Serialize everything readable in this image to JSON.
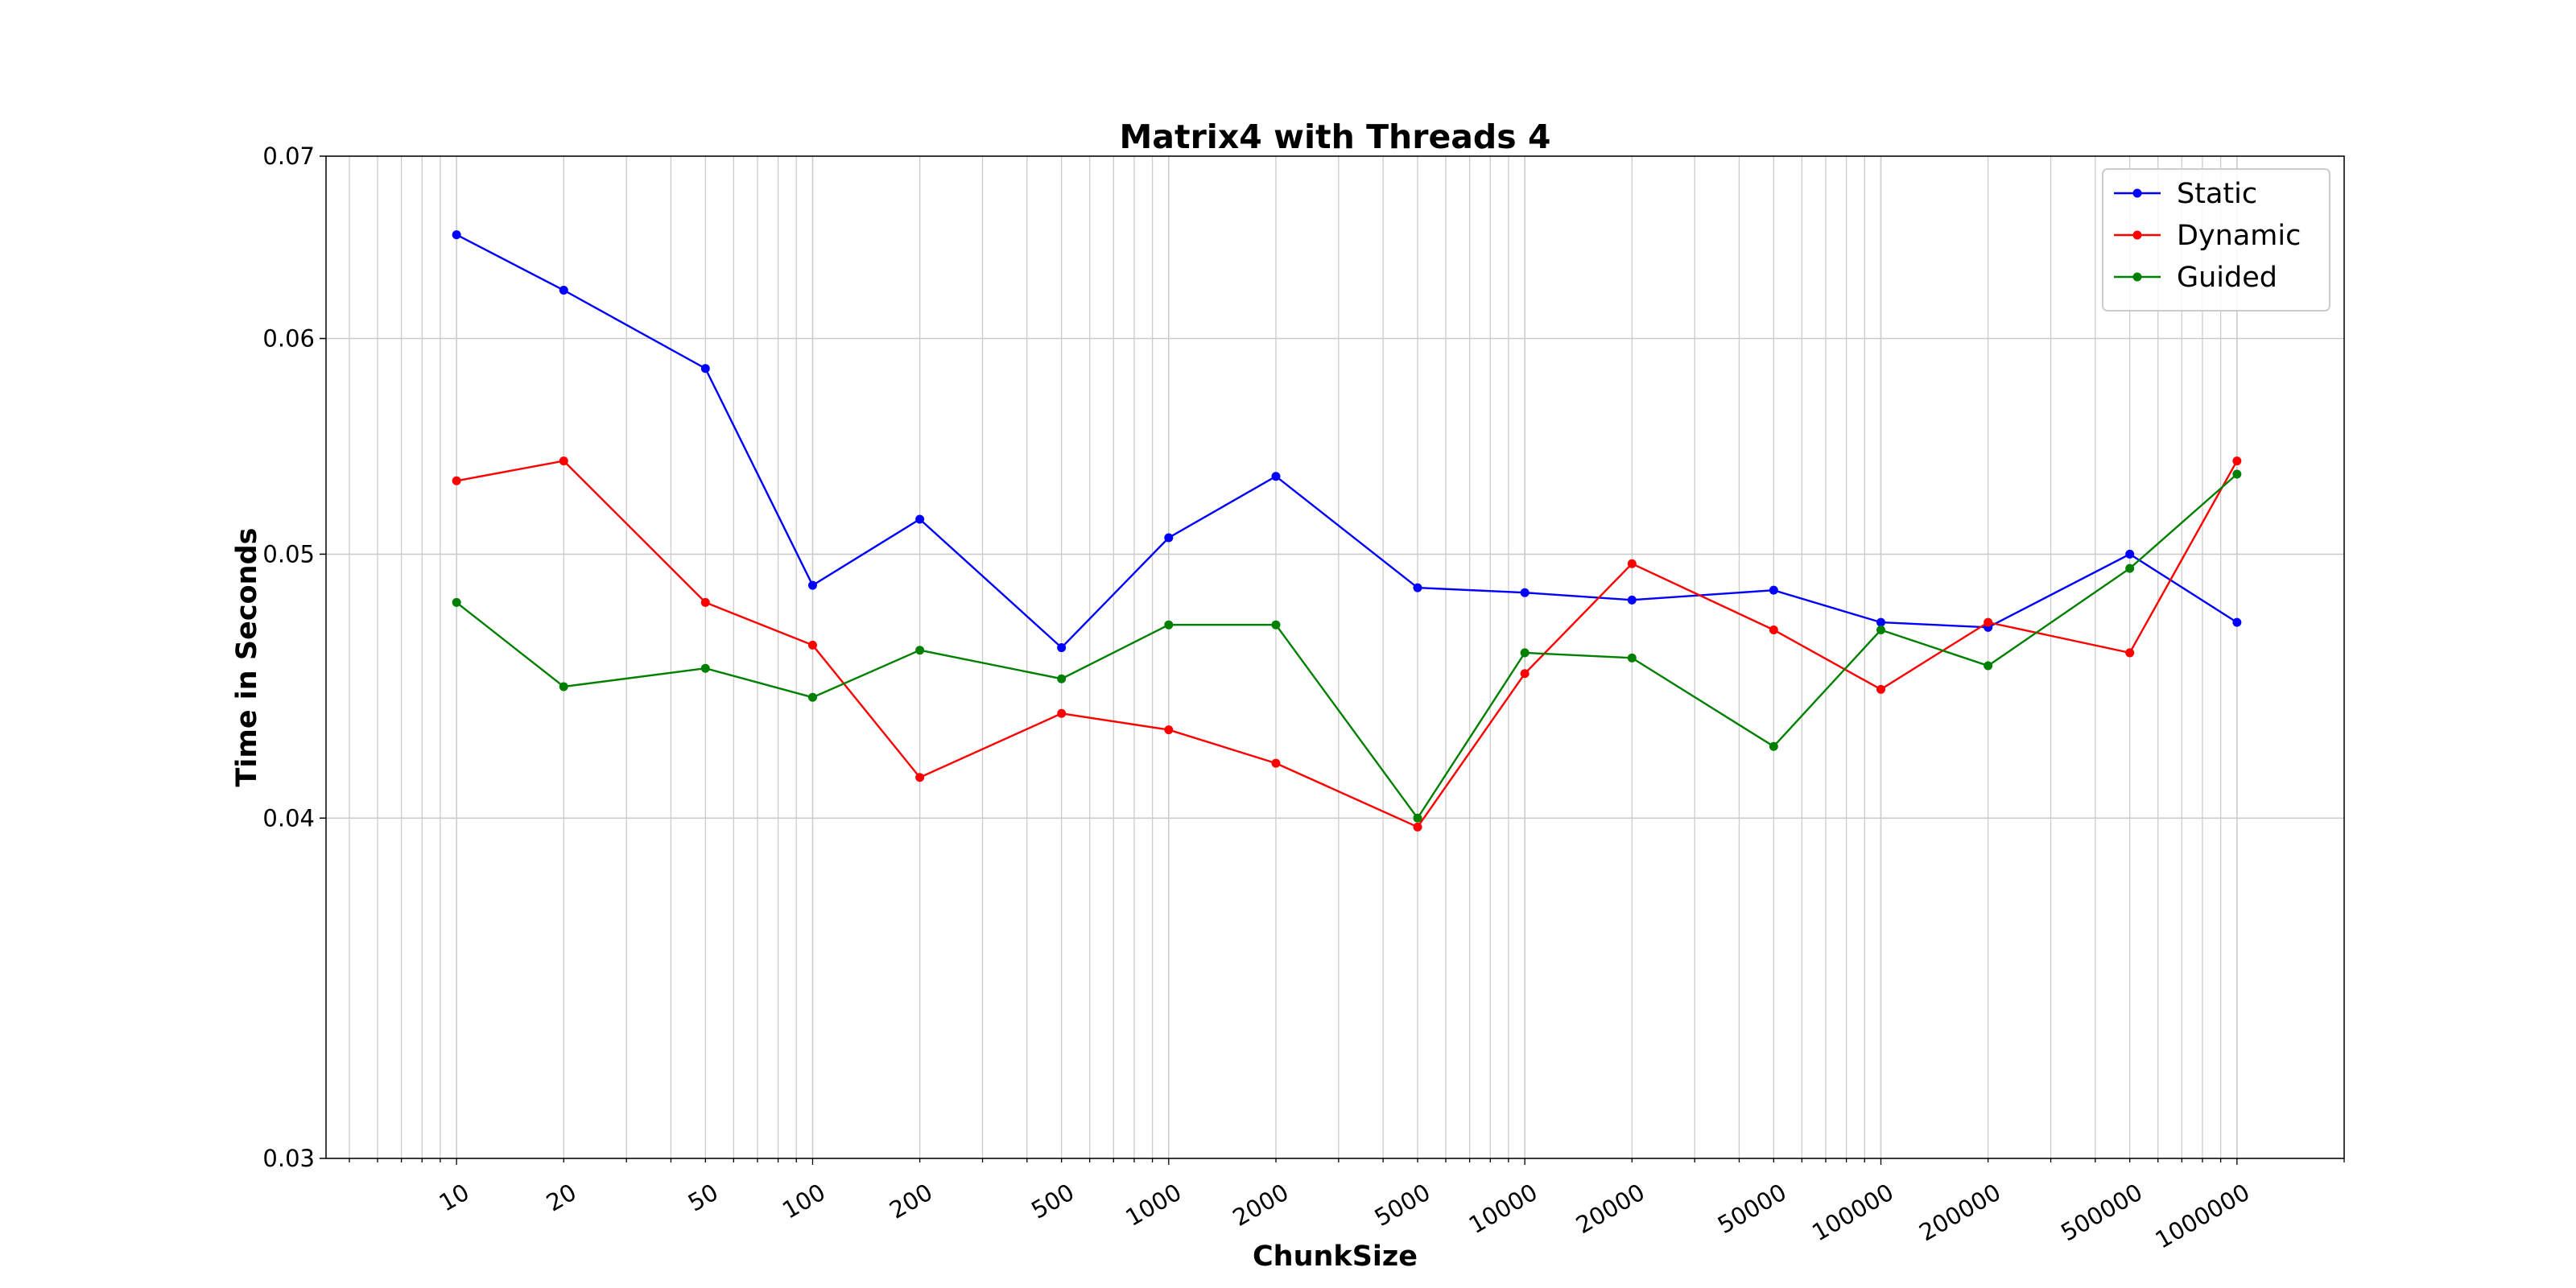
{
  "chart_data": {
    "type": "line",
    "title": "Matrix4 with Threads 4",
    "xlabel": "ChunkSize",
    "ylabel": "Time in Seconds",
    "x_scale": "log",
    "y_scale": "log",
    "xlim": [
      4.3,
      2000000
    ],
    "ylim": [
      0.03,
      0.07
    ],
    "x": [
      10,
      20,
      50,
      100,
      200,
      500,
      1000,
      2000,
      5000,
      10000,
      20000,
      50000,
      100000,
      200000,
      500000,
      1000000
    ],
    "x_tick_labels": [
      "10",
      "20",
      "50",
      "100",
      "200",
      "500",
      "1000",
      "2000",
      "5000",
      "10000",
      "20000",
      "50000",
      "100000",
      "200000",
      "500000",
      "1000000"
    ],
    "y_ticks": [
      0.03,
      0.04,
      0.05,
      0.06,
      0.07
    ],
    "y_tick_labels": [
      "0.03",
      "0.04",
      "0.05",
      "0.06",
      "0.07"
    ],
    "grid": true,
    "legend_position": "top-right",
    "series": [
      {
        "name": "Static",
        "color": "#0000ff",
        "values": [
          0.0655,
          0.0625,
          0.0585,
          0.0487,
          0.0515,
          0.0462,
          0.0507,
          0.0534,
          0.0486,
          0.0484,
          0.0481,
          0.0485,
          0.0472,
          0.047,
          0.05,
          0.0472
        ]
      },
      {
        "name": "Dynamic",
        "color": "#ff0000",
        "values": [
          0.0532,
          0.0541,
          0.048,
          0.0463,
          0.0414,
          0.0437,
          0.0431,
          0.0419,
          0.0397,
          0.0452,
          0.0496,
          0.0469,
          0.0446,
          0.0472,
          0.046,
          0.0541
        ]
      },
      {
        "name": "Guided",
        "color": "#008000",
        "values": [
          0.048,
          0.0447,
          0.0454,
          0.0443,
          0.0461,
          0.045,
          0.0471,
          0.0471,
          0.04,
          0.046,
          0.0458,
          0.0425,
          0.0469,
          0.0455,
          0.0494,
          0.0535
        ]
      }
    ]
  }
}
